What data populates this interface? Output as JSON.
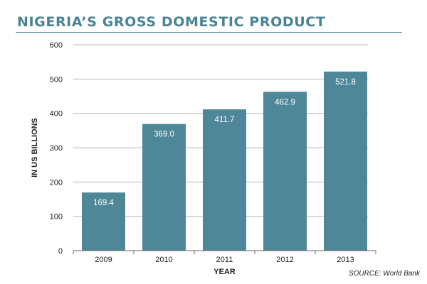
{
  "title": "NIGERIA’S GROSS DOMESTIC PRODUCT",
  "source": "SOURCE: World Bank",
  "colors": {
    "bar": "#4e8797",
    "title": "#4a8494",
    "grid": "#b8b8b8",
    "axis": "#666666"
  },
  "chart_data": {
    "type": "bar",
    "categories": [
      "2009",
      "2010",
      "2011",
      "2012",
      "2013"
    ],
    "values": [
      169.4,
      369.0,
      411.7,
      462.9,
      521.8
    ],
    "value_labels": [
      "169.4",
      "369.0",
      "411.7",
      "462.9",
      "521.8"
    ],
    "title": "NIGERIA’S GROSS DOMESTIC PRODUCT",
    "xlabel": "YEAR",
    "ylabel": "IN US BILLIONS",
    "ylim": [
      0,
      600
    ],
    "yticks": [
      0,
      100,
      200,
      300,
      400,
      500,
      600
    ],
    "grid": true,
    "legend": "none"
  }
}
